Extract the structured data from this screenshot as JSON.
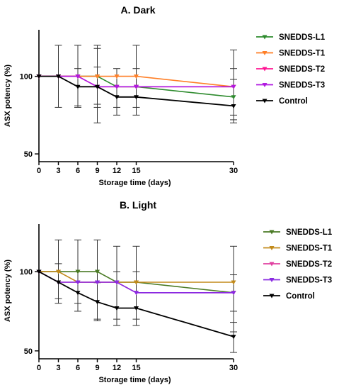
{
  "chart_data": [
    {
      "type": "line",
      "title": "A.  Dark",
      "xlabel": "Storage time (days)",
      "ylabel": "ASX potency (%)",
      "x": [
        0,
        3,
        6,
        9,
        12,
        15,
        30
      ],
      "xticks": [
        "0",
        "3",
        "6",
        "9",
        "12",
        "15",
        "30"
      ],
      "yticks": [
        "50",
        "100"
      ],
      "ylim": [
        45,
        130
      ],
      "legend_placement": "right",
      "series": [
        {
          "name": "SNEDDS-L1",
          "color": "#2e8b2e",
          "values": [
            100,
            100,
            100,
            100,
            93.3,
            93.3,
            86.7
          ],
          "errors": [
            0,
            0,
            0,
            0,
            0,
            0,
            0
          ]
        },
        {
          "name": "SNEDDS-T1",
          "color": "#ff7f27",
          "values": [
            100,
            100,
            100,
            100,
            100,
            100,
            93.3
          ],
          "errors": [
            0,
            0,
            0,
            0,
            0,
            0,
            0
          ]
        },
        {
          "name": "SNEDDS-T2",
          "color": "#ff1493",
          "values": [
            100,
            100,
            100,
            93.3,
            93.3,
            93.3,
            93.3
          ],
          "errors": [
            0,
            0,
            0,
            0,
            0,
            0,
            0
          ]
        },
        {
          "name": "SNEDDS-T3",
          "color": "#b019e0",
          "values": [
            100,
            100,
            100,
            93.3,
            93.3,
            93.3,
            93.3
          ],
          "errors": [
            0,
            0,
            0,
            0,
            0,
            0,
            0
          ]
        },
        {
          "name": "Control",
          "color": "#000000",
          "values": [
            100,
            100,
            93.3,
            93.3,
            86.7,
            86.7,
            80.9
          ],
          "errors": [
            0,
            20,
            13.3,
            13.3,
            11.5,
            11.5,
            10.8
          ]
        }
      ],
      "errorbars": [
        {
          "x": 3,
          "low": 80,
          "high": 120
        },
        {
          "x": 6,
          "low": 80,
          "high": 120
        },
        {
          "x": 6,
          "low": 81,
          "high": 105
        },
        {
          "x": 9,
          "low": 70,
          "high": 120
        },
        {
          "x": 9,
          "low": 80,
          "high": 106
        },
        {
          "x": 9,
          "low": 82,
          "high": 118
        },
        {
          "x": 12,
          "low": 75,
          "high": 105
        },
        {
          "x": 12,
          "low": 80,
          "high": 100
        },
        {
          "x": 15,
          "low": 75,
          "high": 120
        },
        {
          "x": 15,
          "low": 80,
          "high": 105
        },
        {
          "x": 30,
          "low": 70,
          "high": 117
        },
        {
          "x": 30,
          "low": 72,
          "high": 105
        },
        {
          "x": 30,
          "low": 75,
          "high": 98
        }
      ]
    },
    {
      "type": "line",
      "title": "B.  Light",
      "xlabel": "Storage time (days)",
      "ylabel": "ASX potency (%)",
      "x": [
        0,
        3,
        6,
        9,
        12,
        15,
        30
      ],
      "xticks": [
        "0",
        "3",
        "6",
        "9",
        "12",
        "15",
        "30"
      ],
      "yticks": [
        "50",
        "100"
      ],
      "ylim": [
        45,
        130
      ],
      "legend_placement": "right",
      "series": [
        {
          "name": "SNEDDS-L1",
          "color": "#4a7a24",
          "values": [
            100,
            100,
            100,
            100,
            93.3,
            93.3,
            86.7
          ],
          "errors": [
            0,
            0,
            0,
            0,
            0,
            0,
            0
          ]
        },
        {
          "name": "SNEDDS-T1",
          "color": "#c28a1a",
          "values": [
            100,
            100,
            93.3,
            93.3,
            93.3,
            93.3,
            93.3
          ],
          "errors": [
            0,
            0,
            0,
            0,
            0,
            0,
            0
          ]
        },
        {
          "name": "SNEDDS-T2",
          "color": "#e040a0",
          "values": [
            100,
            93.3,
            93.3,
            93.3,
            93.3,
            86.7,
            86.7
          ],
          "errors": [
            0,
            0,
            0,
            0,
            0,
            0,
            0
          ]
        },
        {
          "name": "SNEDDS-T3",
          "color": "#8a2be2",
          "values": [
            100,
            93.3,
            93.3,
            93.3,
            93.3,
            86.7,
            86.7
          ],
          "errors": [
            0,
            0,
            0,
            0,
            0,
            0,
            0
          ]
        },
        {
          "name": "Control",
          "color": "#000000",
          "values": [
            100,
            93.3,
            86.7,
            80.9,
            77,
            77,
            59
          ],
          "errors": [
            0,
            13.3,
            13.3,
            11.5,
            10.8,
            10.8,
            9.5
          ]
        }
      ],
      "errorbars": [
        {
          "x": 3,
          "low": 80,
          "high": 120
        },
        {
          "x": 3,
          "low": 83,
          "high": 105
        },
        {
          "x": 6,
          "low": 80,
          "high": 120
        },
        {
          "x": 6,
          "low": 75,
          "high": 100
        },
        {
          "x": 9,
          "low": 70,
          "high": 120
        },
        {
          "x": 9,
          "low": 69,
          "high": 93
        },
        {
          "x": 12,
          "low": 66,
          "high": 116
        },
        {
          "x": 12,
          "low": 70,
          "high": 100
        },
        {
          "x": 15,
          "low": 66,
          "high": 116
        },
        {
          "x": 15,
          "low": 70,
          "high": 100
        },
        {
          "x": 30,
          "low": 75,
          "high": 116
        },
        {
          "x": 30,
          "low": 49,
          "high": 68
        },
        {
          "x": 30,
          "low": 62,
          "high": 98
        }
      ]
    }
  ]
}
